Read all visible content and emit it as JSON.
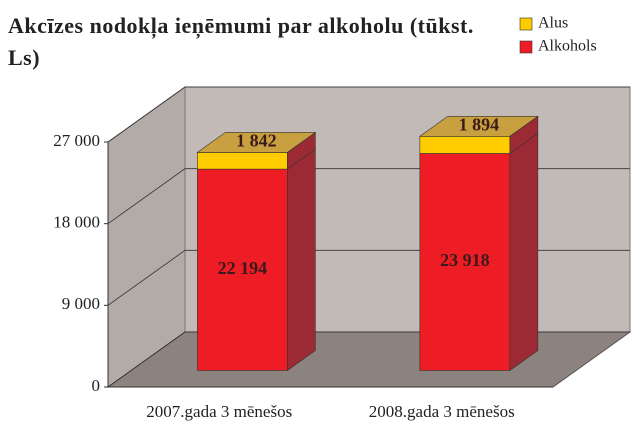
{
  "chart_data": {
    "type": "bar3d_stacked",
    "title": "Akcīzes nodokļa ieņēmumi par alkoholu (tūkst. Ls)",
    "categories": [
      "2007.gada 3 mēnešos",
      "2008.gada 3 mēnešos"
    ],
    "series": [
      {
        "name": "Alkohols",
        "color": "#ee1c24",
        "values": [
          22194,
          23918
        ],
        "value_labels": [
          "22 194",
          "23 918"
        ]
      },
      {
        "name": "Alus",
        "color": "#ffcc00",
        "values": [
          1842,
          1894
        ],
        "value_labels": [
          "1 842",
          "1 894"
        ]
      }
    ],
    "ylim": [
      0,
      27000
    ],
    "yticks": [
      0,
      {
        "value": 9000,
        "label": "9 000"
      },
      {
        "value": 18000,
        "label": "18 000"
      },
      {
        "value": 27000,
        "label": "27 000"
      }
    ],
    "grid": true,
    "legend": "top-right"
  }
}
